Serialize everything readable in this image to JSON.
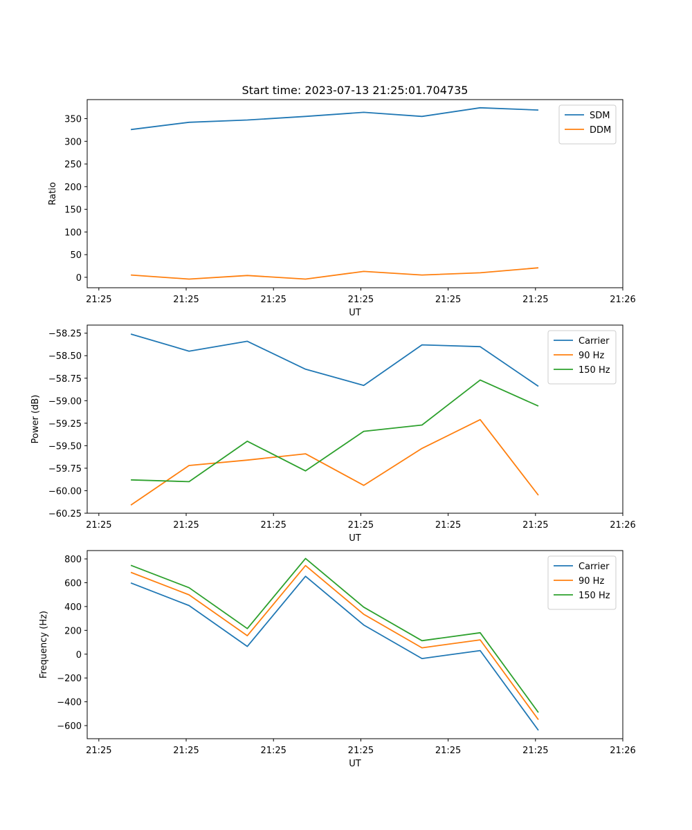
{
  "figure_title": "Start time: 2023-07-13 21:25:01.704735",
  "chart_data": [
    {
      "type": "line",
      "title": "Start time: 2023-07-13 21:25:01.704735",
      "xlabel": "UT",
      "ylabel": "Ratio",
      "x": [
        1,
        2,
        3,
        4,
        5,
        6,
        7,
        8
      ],
      "xlim": [
        0.25,
        9.45
      ],
      "x_ticks": [
        {
          "value": 0.45,
          "label": "21:25"
        },
        {
          "value": 1.95,
          "label": "21:25"
        },
        {
          "value": 3.45,
          "label": "21:25"
        },
        {
          "value": 4.95,
          "label": "21:25"
        },
        {
          "value": 6.45,
          "label": "21:25"
        },
        {
          "value": 7.95,
          "label": "21:25"
        },
        {
          "value": 9.45,
          "label": "21:26"
        }
      ],
      "ylim": [
        -23,
        392
      ],
      "y_ticks": [
        0,
        50,
        100,
        150,
        200,
        250,
        300,
        350
      ],
      "y_tick_labels": [
        "0",
        "50",
        "100",
        "150",
        "200",
        "250",
        "300",
        "350"
      ],
      "legend_position": "top-right",
      "series": [
        {
          "name": "SDM",
          "color": "#1f77b4",
          "values": [
            326,
            342,
            347,
            355,
            364,
            355,
            374,
            369
          ]
        },
        {
          "name": "DDM",
          "color": "#ff7f0e",
          "values": [
            5,
            -4,
            4,
            -4,
            13,
            5,
            10,
            21
          ]
        }
      ]
    },
    {
      "type": "line",
      "xlabel": "UT",
      "ylabel": "Power (dB)",
      "x": [
        1,
        2,
        3,
        4,
        5,
        6,
        7,
        8
      ],
      "xlim": [
        0.25,
        9.45
      ],
      "x_ticks": [
        {
          "value": 0.45,
          "label": "21:25"
        },
        {
          "value": 1.95,
          "label": "21:25"
        },
        {
          "value": 3.45,
          "label": "21:25"
        },
        {
          "value": 4.95,
          "label": "21:25"
        },
        {
          "value": 6.45,
          "label": "21:25"
        },
        {
          "value": 7.95,
          "label": "21:25"
        },
        {
          "value": 9.45,
          "label": "21:26"
        }
      ],
      "ylim": [
        -60.25,
        -58.16
      ],
      "y_ticks": [
        -60.25,
        -60.0,
        -59.75,
        -59.5,
        -59.25,
        -59.0,
        -58.75,
        -58.5,
        -58.25
      ],
      "y_tick_labels": [
        "−60.25",
        "−60.00",
        "−59.75",
        "−59.50",
        "−59.25",
        "−59.00",
        "−58.75",
        "−58.50",
        "−58.25"
      ],
      "legend_position": "top-right",
      "series": [
        {
          "name": "Carrier",
          "color": "#1f77b4",
          "values": [
            -58.26,
            -58.45,
            -58.34,
            -58.65,
            -58.83,
            -58.38,
            -58.4,
            -58.84
          ]
        },
        {
          "name": "90 Hz",
          "color": "#ff7f0e",
          "values": [
            -60.16,
            -59.72,
            -59.66,
            -59.59,
            -59.94,
            -59.53,
            -59.21,
            -60.05
          ]
        },
        {
          "name": "150 Hz",
          "color": "#2ca02c",
          "values": [
            -59.88,
            -59.9,
            -59.45,
            -59.78,
            -59.34,
            -59.27,
            -58.77,
            -59.06
          ]
        }
      ]
    },
    {
      "type": "line",
      "xlabel": "UT",
      "ylabel": "Frequency (Hz)",
      "x": [
        1,
        2,
        3,
        4,
        5,
        6,
        7,
        8
      ],
      "xlim": [
        0.25,
        9.45
      ],
      "x_ticks": [
        {
          "value": 0.45,
          "label": "21:25"
        },
        {
          "value": 1.95,
          "label": "21:25"
        },
        {
          "value": 3.45,
          "label": "21:25"
        },
        {
          "value": 4.95,
          "label": "21:25"
        },
        {
          "value": 6.45,
          "label": "21:25"
        },
        {
          "value": 7.95,
          "label": "21:25"
        },
        {
          "value": 9.45,
          "label": "21:26"
        }
      ],
      "ylim": [
        -710,
        870
      ],
      "y_ticks": [
        -600,
        -400,
        -200,
        0,
        200,
        400,
        600,
        800
      ],
      "y_tick_labels": [
        "−600",
        "−400",
        "−200",
        "0",
        "200",
        "400",
        "600",
        "800"
      ],
      "legend_position": "top-right",
      "series": [
        {
          "name": "Carrier",
          "color": "#1f77b4",
          "values": [
            598,
            408,
            65,
            654,
            245,
            -37,
            30,
            -640
          ]
        },
        {
          "name": "90 Hz",
          "color": "#ff7f0e",
          "values": [
            687,
            498,
            155,
            744,
            335,
            53,
            120,
            -550
          ]
        },
        {
          "name": "150 Hz",
          "color": "#2ca02c",
          "values": [
            746,
            558,
            215,
            804,
            395,
            113,
            180,
            -490
          ]
        }
      ]
    }
  ]
}
